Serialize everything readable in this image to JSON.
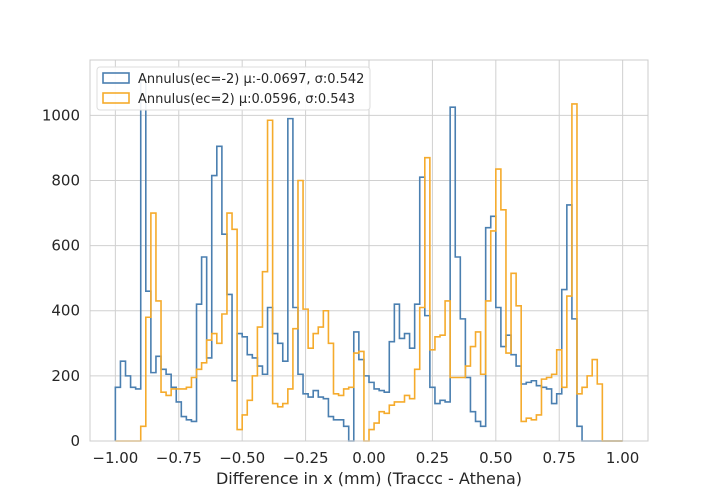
{
  "chart_data": {
    "type": "histogram-step",
    "xlabel": "Difference in x (mm) (Traccc - Athena)",
    "ylabel": "",
    "xlim": [
      -1.1,
      1.1
    ],
    "ylim": [
      0,
      1170
    ],
    "grid": true,
    "legend_position": "upper-left",
    "x_ticks": [
      {
        "value": -1.0,
        "label": "−1.00"
      },
      {
        "value": -0.75,
        "label": "−0.75"
      },
      {
        "value": -0.5,
        "label": "−0.50"
      },
      {
        "value": -0.25,
        "label": "−0.25"
      },
      {
        "value": 0.0,
        "label": "0.00"
      },
      {
        "value": 0.25,
        "label": "0.25"
      },
      {
        "value": 0.5,
        "label": "0.50"
      },
      {
        "value": 0.75,
        "label": "0.75"
      },
      {
        "value": 1.0,
        "label": "1.00"
      }
    ],
    "y_ticks": [
      {
        "value": 0,
        "label": "0"
      },
      {
        "value": 200,
        "label": "200"
      },
      {
        "value": 400,
        "label": "400"
      },
      {
        "value": 600,
        "label": "600"
      },
      {
        "value": 800,
        "label": "800"
      },
      {
        "value": 1000,
        "label": "1000"
      }
    ],
    "bin_start": -1.0,
    "bin_width": 0.02,
    "series": [
      {
        "name": "Annulus(ec=-2) μ:-0.0697, σ:0.542",
        "color": "#4a7fb0",
        "values": [
          165,
          245,
          200,
          165,
          160,
          1110,
          460,
          210,
          260,
          220,
          205,
          165,
          120,
          75,
          65,
          60,
          420,
          565,
          255,
          815,
          905,
          635,
          450,
          185,
          330,
          320,
          265,
          255,
          230,
          205,
          410,
          330,
          300,
          245,
          990,
          410,
          205,
          145,
          135,
          155,
          135,
          130,
          75,
          65,
          65,
          45,
          0,
          335,
          250,
          200,
          180,
          160,
          155,
          150,
          305,
          420,
          315,
          330,
          285,
          420,
          810,
          385,
          165,
          115,
          125,
          120,
          1025,
          565,
          375,
          195,
          90,
          60,
          45,
          655,
          690,
          410,
          290,
          325,
          265,
          230,
          175,
          180,
          185,
          170,
          165,
          160,
          115,
          145,
          465,
          725,
          375,
          45,
          0,
          0,
          0,
          0,
          0,
          0,
          0,
          0
        ]
      },
      {
        "name": "Annulus(ec=2) μ:0.0596, σ:0.543",
        "color": "#f5ab2c",
        "values": [
          0,
          0,
          0,
          0,
          0,
          45,
          380,
          700,
          430,
          150,
          140,
          160,
          160,
          160,
          165,
          195,
          220,
          240,
          310,
          330,
          300,
          390,
          700,
          650,
          35,
          80,
          125,
          200,
          350,
          520,
          985,
          115,
          105,
          115,
          160,
          345,
          800,
          405,
          285,
          330,
          350,
          400,
          300,
          145,
          140,
          160,
          165,
          270,
          275,
          0,
          35,
          55,
          90,
          85,
          110,
          120,
          120,
          140,
          130,
          220,
          410,
          870,
          280,
          320,
          325,
          430,
          195,
          195,
          195,
          230,
          290,
          335,
          205,
          430,
          645,
          835,
          710,
          270,
          515,
          415,
          60,
          70,
          65,
          80,
          190,
          195,
          205,
          280,
          165,
          445,
          1035,
          145,
          165,
          200,
          250,
          175,
          0,
          0,
          0,
          0
        ]
      }
    ]
  }
}
